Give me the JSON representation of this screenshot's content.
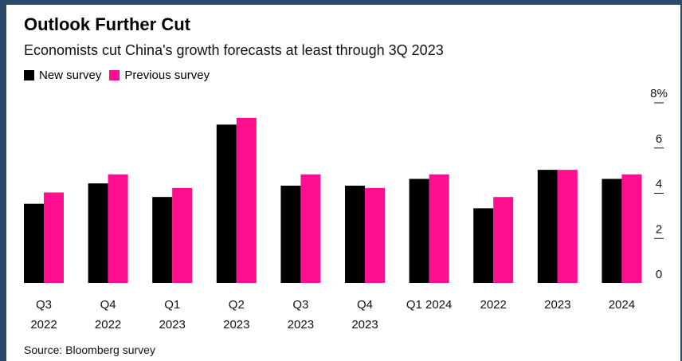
{
  "title": "Outlook Further Cut",
  "subtitle": "Economists cut China's growth forecasts at least through 3Q 2023",
  "source": "Source: Bloomberg survey",
  "colors": {
    "new": "#000000",
    "previous": "#ff0f8f"
  },
  "chart_data": {
    "type": "bar",
    "categories": [
      [
        "Q3",
        "2022"
      ],
      [
        "Q4",
        "2022"
      ],
      [
        "Q1",
        "2023"
      ],
      [
        "Q2",
        "2023"
      ],
      [
        "Q3",
        "2023"
      ],
      [
        "Q4",
        "2023"
      ],
      [
        "Q1 2024"
      ],
      [
        "2022"
      ],
      [
        "2023"
      ],
      [
        "2024"
      ]
    ],
    "series": [
      {
        "name": "New survey",
        "values": [
          3.5,
          4.4,
          3.8,
          7.0,
          4.3,
          4.3,
          4.6,
          3.3,
          5.0,
          4.6
        ]
      },
      {
        "name": "Previous survey",
        "values": [
          4.0,
          4.8,
          4.2,
          7.3,
          4.8,
          4.2,
          4.8,
          3.8,
          5.0,
          4.8
        ]
      }
    ],
    "y_ticks": [
      "0",
      "2",
      "4",
      "6",
      "8%"
    ],
    "ylim": [
      0,
      8
    ],
    "legend_position": "top-left",
    "y_axis_position": "right",
    "grid": false
  }
}
